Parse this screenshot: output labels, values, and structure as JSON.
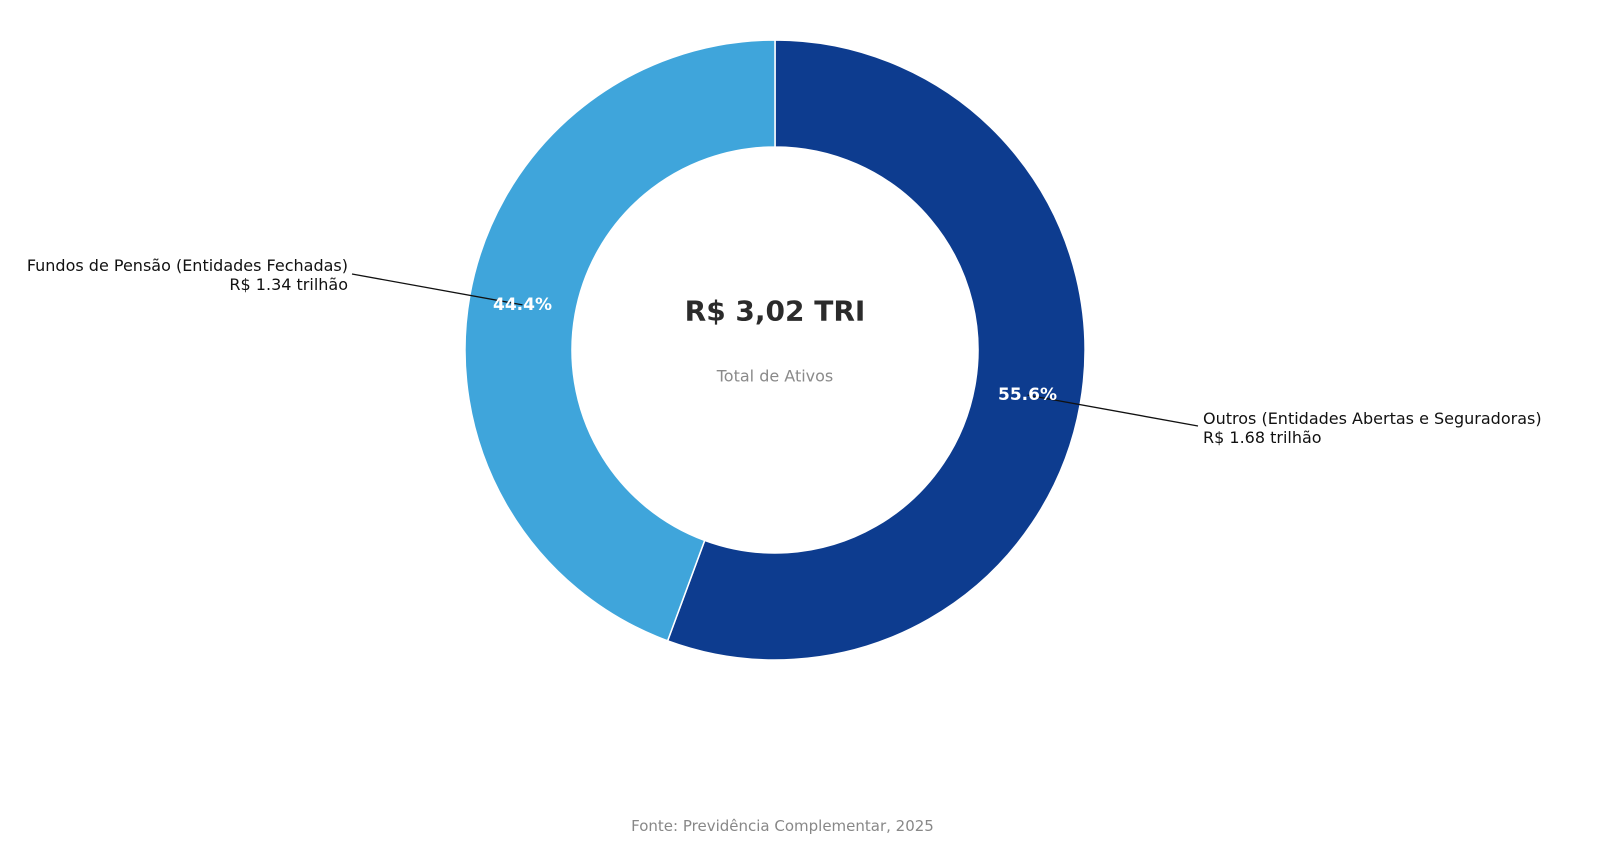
{
  "chart_data": {
    "type": "pie",
    "donut": true,
    "center_value": "R$ 3,02 TRI",
    "center_label": "Total de Ativos",
    "slices": [
      {
        "name": "Outros (Entidades Abertas e Seguradoras)",
        "value_label": "R$ 1.68 trilhão",
        "value": 1.68,
        "percent": 55.6,
        "percent_label": "55.6%",
        "color": "#0d3c8f"
      },
      {
        "name": "Fundos de Pensão (Entidades Fechadas)",
        "value_label": "R$ 1.34 trilhão",
        "value": 1.34,
        "percent": 44.4,
        "percent_label": "44.4%",
        "color": "#3fa5db"
      }
    ],
    "source": "Fonte: Previdência Complementar, 2025"
  }
}
